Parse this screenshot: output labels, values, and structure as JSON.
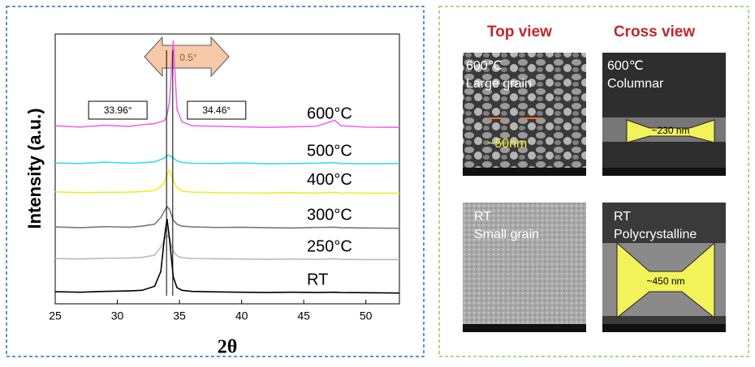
{
  "chart_data": {
    "type": "line",
    "y_label": "Intensity (a.u.)",
    "x_label": "2θ",
    "x": [
      25,
      27,
      29,
      31,
      32,
      33,
      33.5,
      33.8,
      34,
      34.2,
      34.5,
      34.8,
      35.2,
      36,
      38,
      40,
      42,
      44,
      46,
      47.5,
      48,
      50,
      52.7
    ],
    "xlim": [
      25,
      52.7
    ],
    "xticks": [
      25,
      30,
      35,
      40,
      45,
      50
    ],
    "ylim": [
      0,
      100
    ],
    "series": [
      {
        "name": "600°C",
        "color": "#ee66ee",
        "values": [
          66,
          65.5,
          66.2,
          65.8,
          66.4,
          66.8,
          67.5,
          68,
          70,
          75,
          97.6,
          72,
          67.5,
          66,
          65.8,
          65.6,
          65.4,
          65.6,
          65.8,
          68,
          66,
          65.5,
          65.4
        ]
      },
      {
        "name": "500°C",
        "color": "#33ddee",
        "values": [
          52.2,
          52,
          52.5,
          52.1,
          52.3,
          52.6,
          53.5,
          54,
          55,
          55,
          54,
          53,
          52.4,
          52.1,
          52,
          52.2,
          51.9,
          52,
          52.1,
          52.3,
          52,
          51.9,
          52
        ]
      },
      {
        "name": "400°C",
        "color": "#eeee22",
        "values": [
          41.5,
          41.2,
          41.3,
          41.4,
          41.6,
          42,
          43.5,
          45,
          48,
          49.5,
          46,
          43,
          41.8,
          41.4,
          41.2,
          41.1,
          41,
          41.2,
          41,
          41.3,
          41.1,
          41,
          41
        ]
      },
      {
        "name": "300°C",
        "color": "#777777",
        "values": [
          28.5,
          28.2,
          28.6,
          28.4,
          28.8,
          29.5,
          32,
          34.5,
          36,
          35,
          31,
          29.5,
          28.8,
          28.5,
          28.3,
          28.4,
          28.2,
          28.1,
          28.3,
          28.4,
          28.2,
          28.1,
          28
        ]
      },
      {
        "name": "250°C",
        "color": "#bbbbbb",
        "values": [
          16.8,
          16.6,
          16.9,
          17,
          17.2,
          18,
          21,
          24,
          25.5,
          24,
          19.5,
          17.8,
          17.1,
          16.8,
          16.7,
          16.6,
          16.5,
          16.6,
          16.5,
          16.7,
          16.5,
          16.4,
          16.4
        ]
      },
      {
        "name": "RT",
        "color": "#000000",
        "values": [
          4.5,
          4.3,
          4.6,
          4.8,
          5,
          6.5,
          12,
          25,
          31.5,
          24,
          10,
          6,
          5,
          4.6,
          4.4,
          4.3,
          4.2,
          4.3,
          4.2,
          4.3,
          4.2,
          4.1,
          4
        ]
      }
    ],
    "annotations": [
      {
        "text": "33.96°",
        "x": 33.96
      },
      {
        "text": "34.46°",
        "x": 34.46
      }
    ],
    "shift_label": "0.5°"
  },
  "sem": {
    "top_view": "Top view",
    "cross_view": "Cross view",
    "panels": [
      {
        "title": "600℃",
        "subtitle": "Large grain",
        "size": "~50nm"
      },
      {
        "title": "600℃",
        "subtitle": "Columnar",
        "size": "~230 nm"
      },
      {
        "title": "RT",
        "subtitle": "Small grain"
      },
      {
        "title": "RT",
        "subtitle": "Polycrystalline",
        "size": "~450 nm"
      }
    ]
  }
}
